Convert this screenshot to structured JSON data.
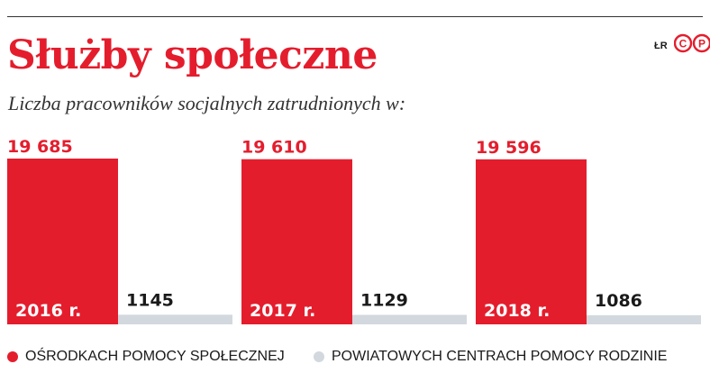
{
  "header": {
    "title": "Służby społeczne",
    "subtitle": "Liczba pracowników socjalnych zatrudnionych w:",
    "credit": "ŁR",
    "logo_letters": [
      "C",
      "P"
    ]
  },
  "colors": {
    "accent": "#e41d2d",
    "secondary_bar": "#d2d8de",
    "text": "#1a1a1a"
  },
  "chart_data": {
    "type": "bar",
    "title": "Służby społeczne",
    "subtitle": "Liczba pracowników socjalnych zatrudnionych w:",
    "categories": [
      "2016 r.",
      "2017 r.",
      "2018 r."
    ],
    "series": [
      {
        "name": "OŚRODKACH POMOCY SPOŁECZNEJ",
        "color": "#e41d2d",
        "values": [
          19685,
          19610,
          19596
        ],
        "labels": [
          "19 685",
          "19 610",
          "19 596"
        ]
      },
      {
        "name": "POWIATOWYCH CENTRACH POMOCY RODZINIE",
        "color": "#d2d8de",
        "values": [
          1145,
          1129,
          1086
        ],
        "labels": [
          "1145",
          "1129",
          "1086"
        ]
      }
    ],
    "xlabel": "",
    "ylabel": "",
    "grid": false,
    "legend": "bottom"
  },
  "legend": [
    {
      "label": "OŚRODKACH POMOCY SPOŁECZNEJ",
      "color": "#e41d2d"
    },
    {
      "label": "POWIATOWYCH CENTRACH POMOCY RODZINIE",
      "color": "#d2d8de"
    }
  ]
}
